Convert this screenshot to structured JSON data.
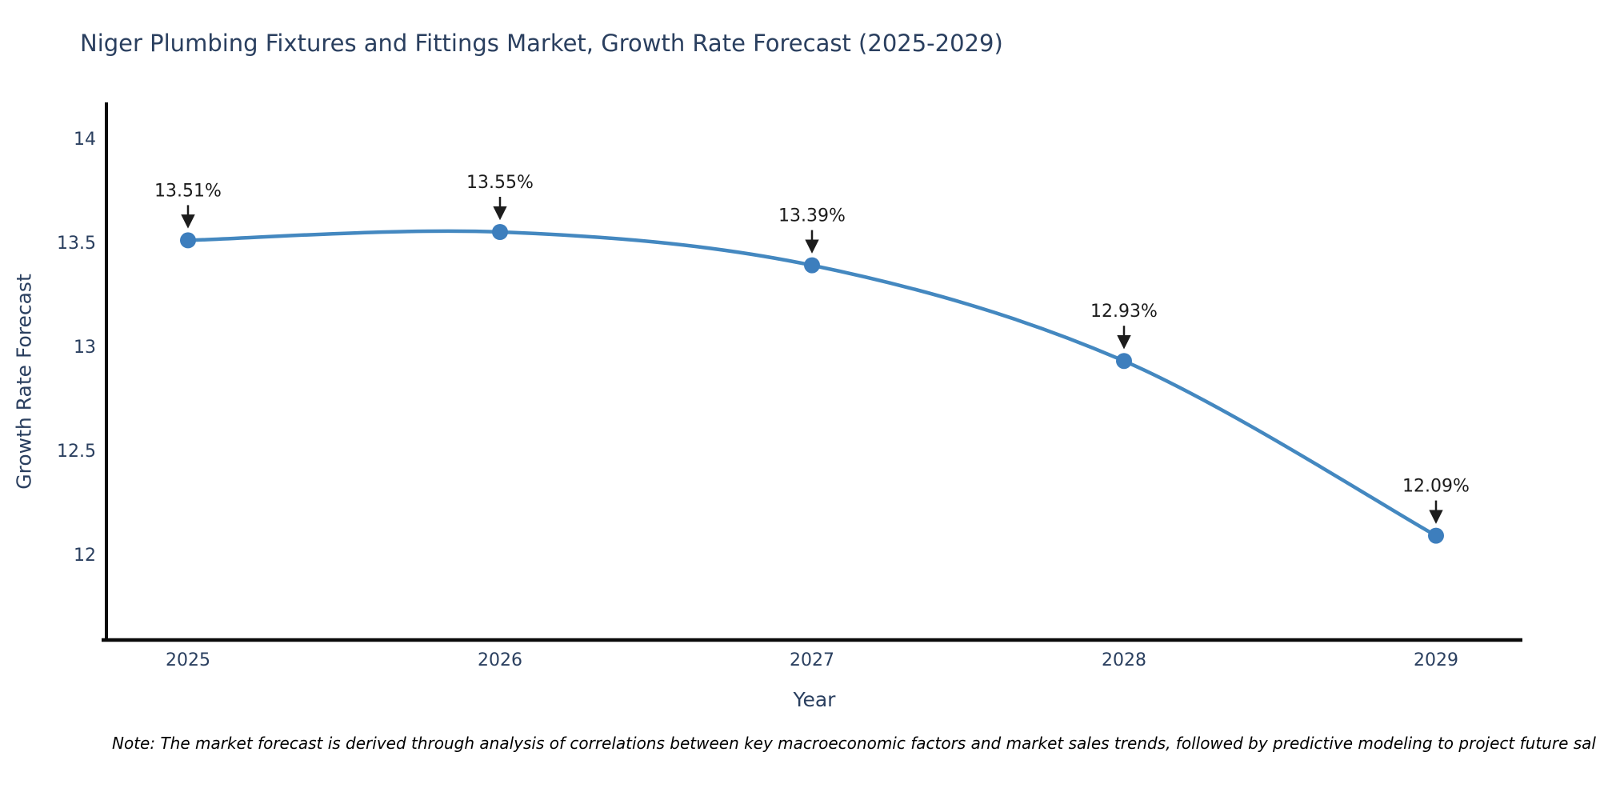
{
  "figure": {
    "title": "Niger Plumbing Fixtures and Fittings Market, Growth Rate Forecast (2025-2029)",
    "note": "Note: The market forecast is derived through analysis of correlations between key macroeconomic factors and market sales trends, followed by predictive modeling to project future sal"
  },
  "chart_data": {
    "type": "line",
    "title": "Niger Plumbing Fixtures and Fittings Market, Growth Rate Forecast (2025-2029)",
    "xlabel": "Year",
    "ylabel": "Growth Rate Forecast",
    "categories": [
      "2025",
      "2026",
      "2027",
      "2028",
      "2029"
    ],
    "series": [
      {
        "name": "Growth Rate Forecast",
        "values": [
          13.51,
          13.55,
          13.39,
          12.93,
          12.09
        ],
        "point_labels": [
          "13.51%",
          "13.55%",
          "13.39%",
          "12.93%",
          "12.09%"
        ]
      }
    ],
    "yticks": [
      12,
      12.5,
      13,
      13.5,
      14
    ],
    "ylim": [
      11.6,
      14.17
    ],
    "grid": false,
    "legend_position": "none",
    "line_smooth": true,
    "colors": {
      "line": "#4488c0",
      "marker": "#3d7ebd",
      "axis": "#0a0a0a",
      "tick_label": "#2a3f5f",
      "annotation": "#1c1c1c"
    }
  }
}
